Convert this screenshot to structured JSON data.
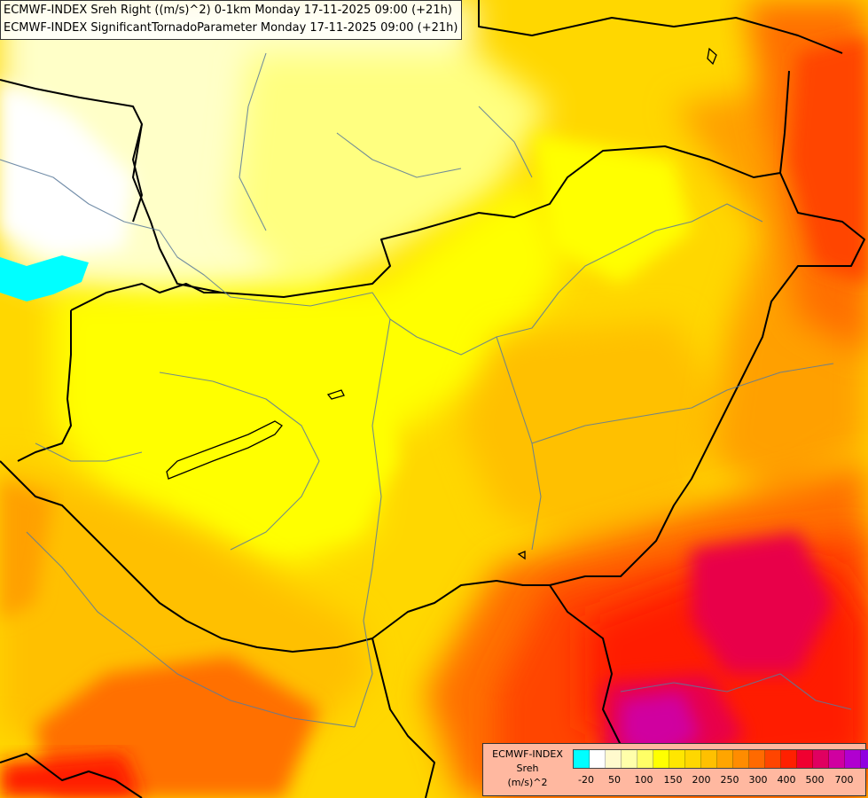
{
  "title": {
    "line1": "ECMWF-INDEX Sreh Right ((m/s)^2) 0-1km Monday 17-11-2025 09:00 (+21h)",
    "line2": "ECMWF-INDEX SignificantTornadoParameter Monday 17-11-2025 09:00 (+21h)"
  },
  "legend": {
    "model": "ECMWF-INDEX",
    "variable": "Sreh",
    "unit": "(m/s)^2",
    "colors": [
      "#00ffff",
      "#ffffff",
      "#fffacd",
      "#ffffaa",
      "#ffff66",
      "#ffff00",
      "#ffe600",
      "#ffd700",
      "#ffc000",
      "#ffa500",
      "#ff8c00",
      "#ff6a00",
      "#ff4500",
      "#ff2000",
      "#f00030",
      "#e00060",
      "#d000a0",
      "#b000d0",
      "#9000e0",
      "#6000c0",
      "#3000a0",
      "#000080"
    ],
    "tick_labels": [
      "-20",
      "50",
      "100",
      "150",
      "200",
      "250",
      "300",
      "400",
      "500",
      "700"
    ]
  },
  "map": {
    "field_colors": {
      "cyan": "#00ffff",
      "white": "#ffffff",
      "pale": "#ffffc8",
      "light_yellow": "#ffff80",
      "yellow": "#ffff00",
      "gold": "#ffd700",
      "amber": "#ffc000",
      "orange": "#ffa000",
      "dark_orange": "#ff7000",
      "red_orange": "#ff4500",
      "red": "#ff1a00",
      "crimson": "#e8004a",
      "magenta": "#d000a0"
    },
    "border_color": "#000000",
    "river_color": "#5a7a9a"
  }
}
